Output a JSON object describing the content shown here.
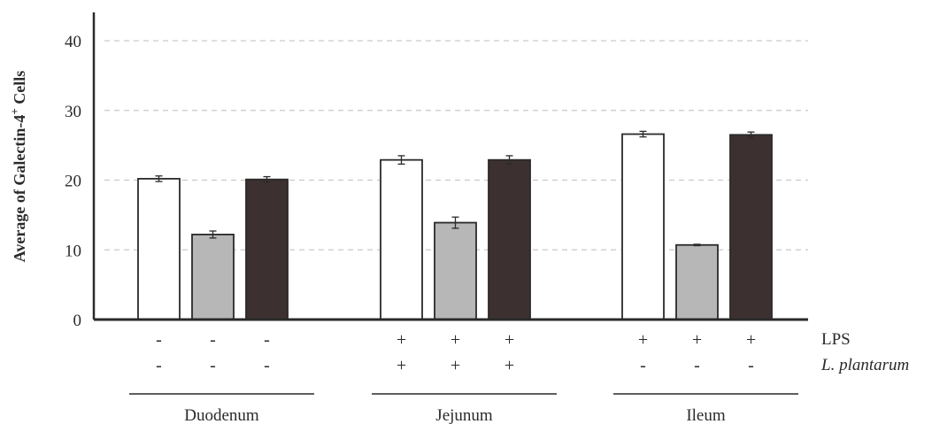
{
  "chart_data": {
    "type": "bar",
    "ylabel": "Average of Galectin-4",
    "ylabel_sup": "+",
    "ylabel_tail": " Cells",
    "ylim": [
      0,
      40
    ],
    "yticks": [
      0,
      10,
      20,
      30,
      40
    ],
    "grid": true,
    "groups": [
      {
        "name": "Duodenum",
        "bars": [
          {
            "value": 20.2,
            "error": 0.4,
            "color": "#ffffff",
            "lps": "-",
            "lp": "-"
          },
          {
            "value": 12.2,
            "error": 0.5,
            "color": "#b7b7b7",
            "lps": "-",
            "lp": "-"
          },
          {
            "value": 20.1,
            "error": 0.4,
            "color": "#3d3030",
            "lps": "-",
            "lp": "-"
          }
        ]
      },
      {
        "name": "Jejunum",
        "bars": [
          {
            "value": 22.9,
            "error": 0.6,
            "color": "#ffffff",
            "lps": "+",
            "lp": "+"
          },
          {
            "value": 13.9,
            "error": 0.8,
            "color": "#b7b7b7",
            "lps": "+",
            "lp": "+"
          },
          {
            "value": 22.9,
            "error": 0.6,
            "color": "#3d3030",
            "lps": "+",
            "lp": "+"
          }
        ]
      },
      {
        "name": "Ileum",
        "bars": [
          {
            "value": 26.6,
            "error": 0.4,
            "color": "#ffffff",
            "lps": "+",
            "lp": "-"
          },
          {
            "value": 10.7,
            "error": 0.1,
            "color": "#b7b7b7",
            "lps": "+",
            "lp": "-"
          },
          {
            "value": 26.5,
            "error": 0.4,
            "color": "#3d3030",
            "lps": "+",
            "lp": "-"
          }
        ]
      }
    ],
    "row_labels": {
      "lps": "LPS",
      "lp": "L. plantarum"
    }
  }
}
